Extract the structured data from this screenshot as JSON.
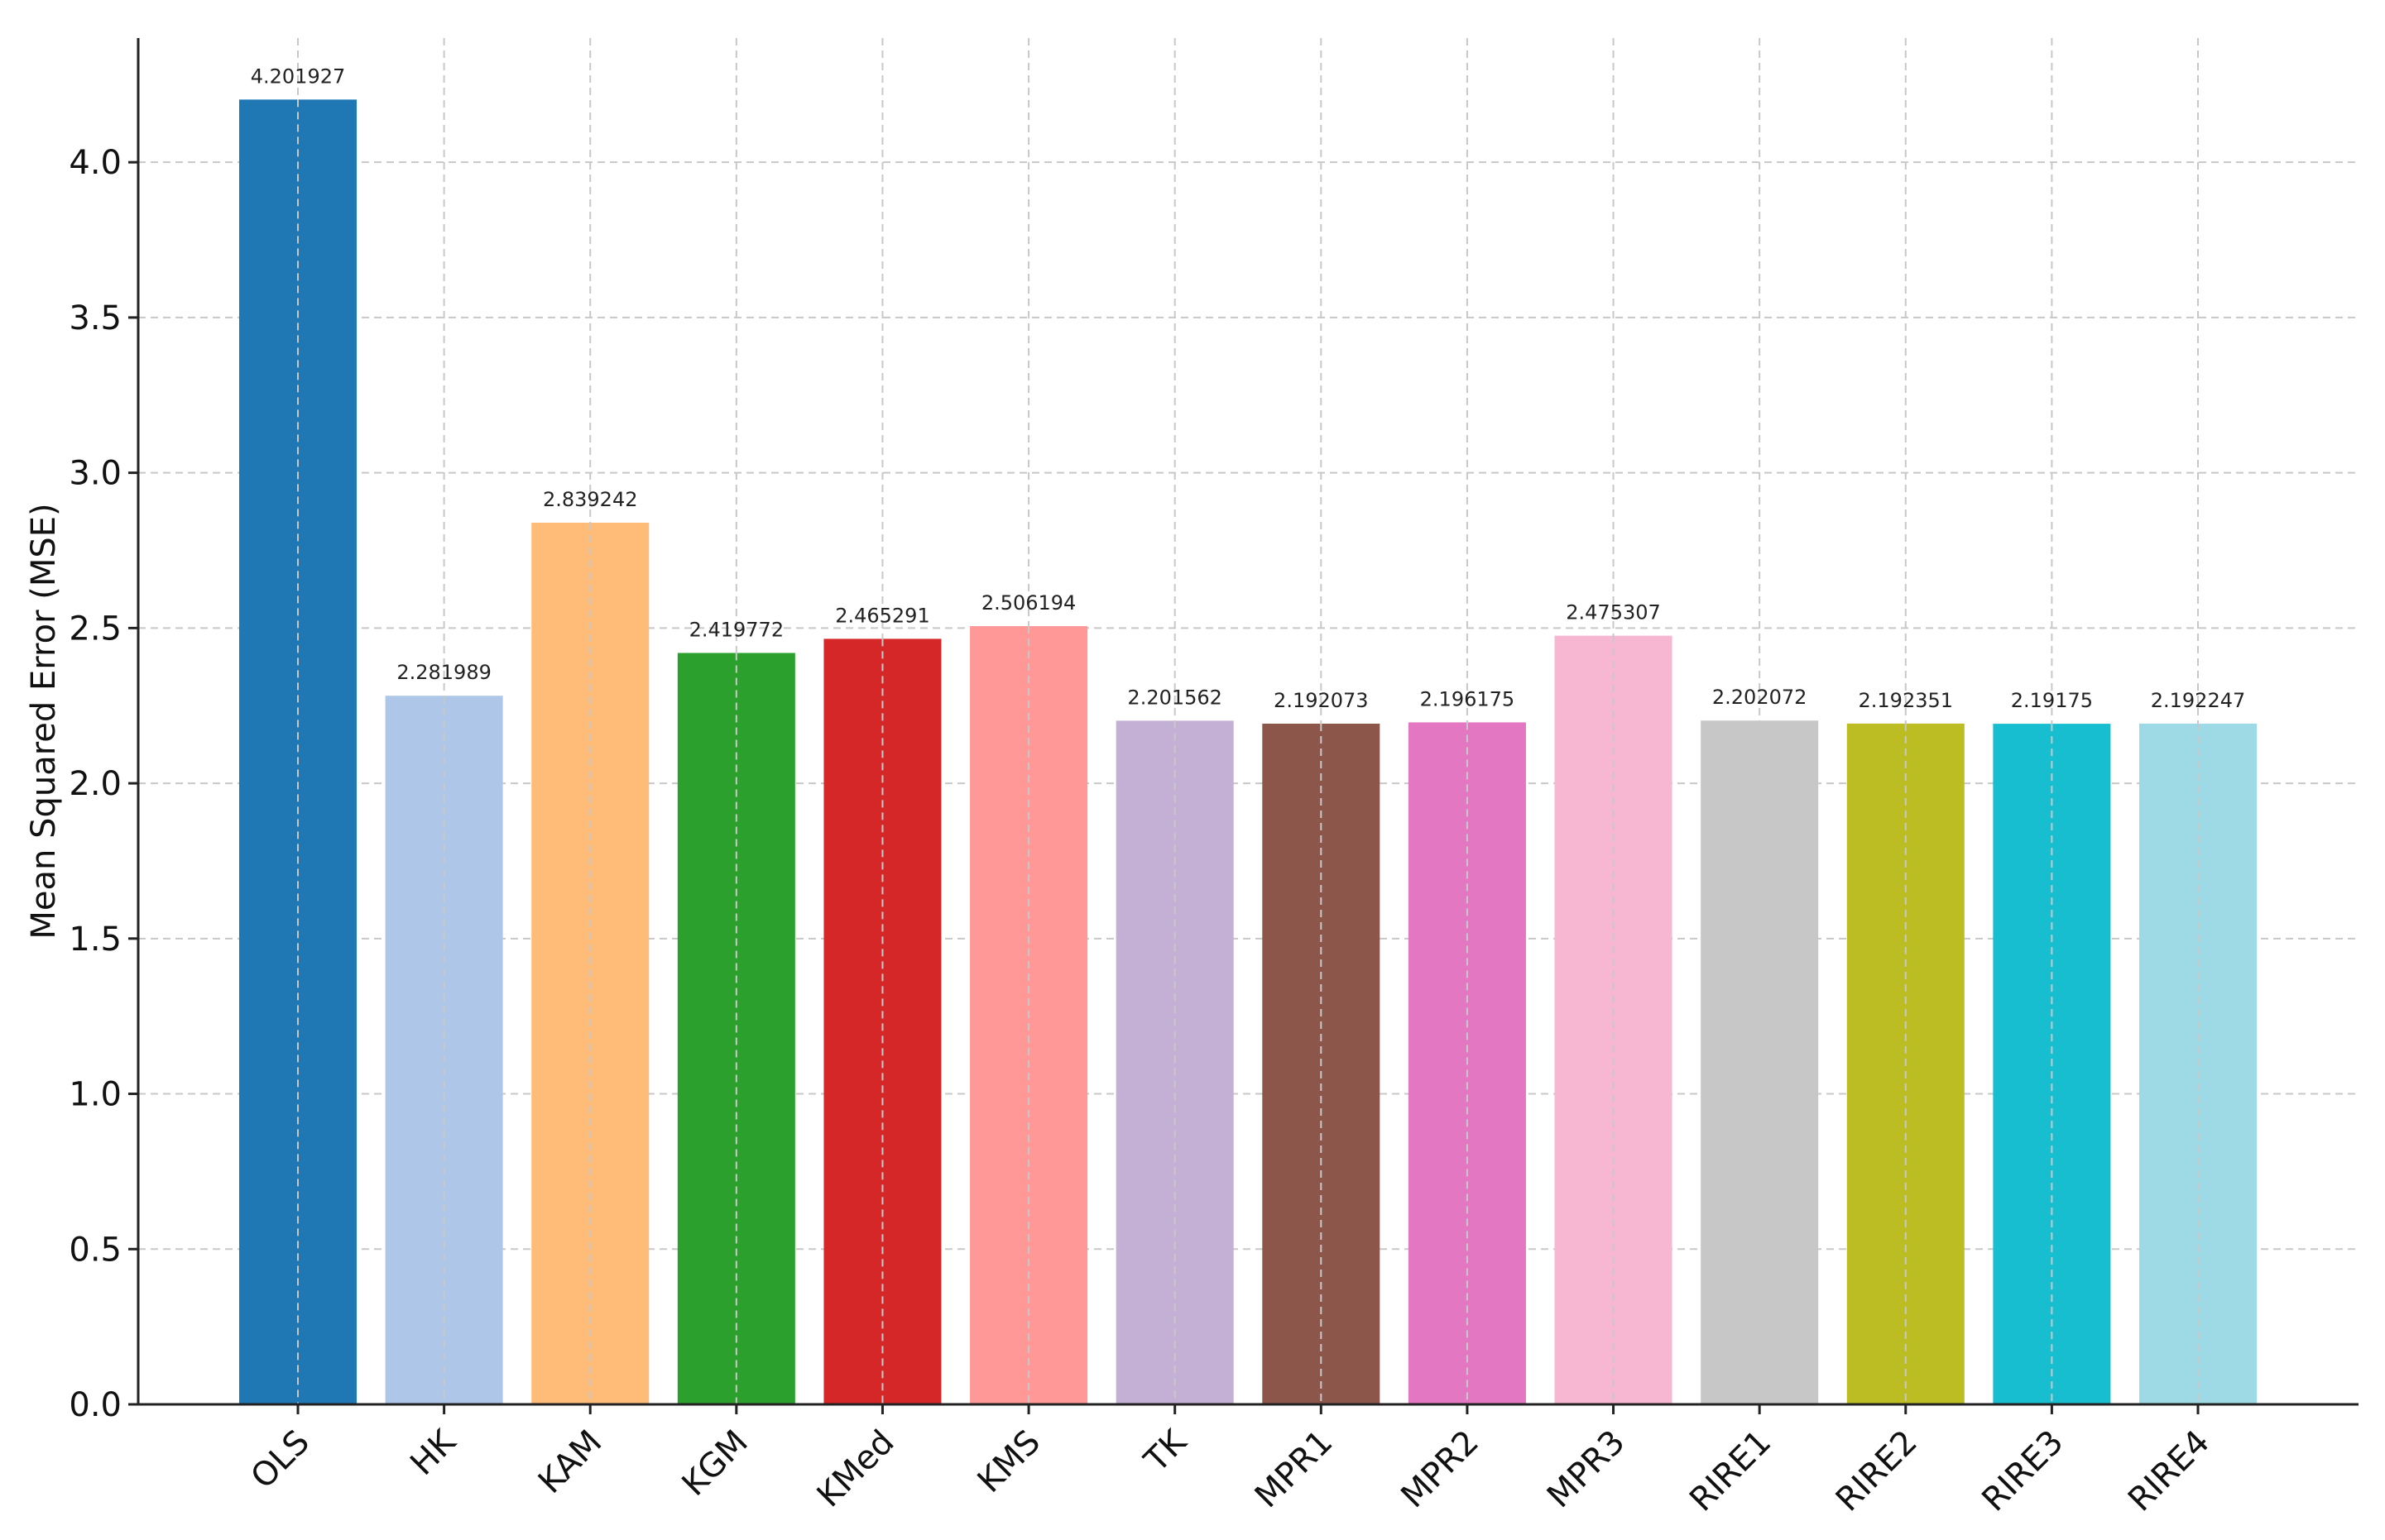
{
  "chart_data": {
    "type": "bar",
    "ylabel": "Mean Squared Error (MSE)",
    "xlabel": "",
    "ylim": [
      0,
      4.4
    ],
    "yticks": [
      "0.0",
      "0.5",
      "1.0",
      "1.5",
      "2.0",
      "2.5",
      "3.0",
      "3.5",
      "4.0"
    ],
    "grid": true,
    "categories": [
      "OLS",
      "HK",
      "KAM",
      "KGM",
      "KMed",
      "KMS",
      "TK",
      "MPR1",
      "MPR2",
      "MPR3",
      "RIRE1",
      "RIRE2",
      "RIRE3",
      "RIRE4"
    ],
    "values": [
      4.201927,
      2.281989,
      2.839242,
      2.419772,
      2.465291,
      2.506194,
      2.201562,
      2.192073,
      2.196175,
      2.475307,
      2.202072,
      2.192351,
      2.19175,
      2.192247
    ],
    "value_labels": [
      "4.201927",
      "2.281989",
      "2.839242",
      "2.419772",
      "2.465291",
      "2.506194",
      "2.201562",
      "2.192073",
      "2.196175",
      "2.475307",
      "2.202072",
      "2.192351",
      "2.19175",
      "2.192247"
    ],
    "colors": [
      "#1f77b4",
      "#aec7e8",
      "#ffbb78",
      "#2ca02c",
      "#d62728",
      "#ff9896",
      "#c5b0d5",
      "#8c564b",
      "#e377c2",
      "#f7b6d2",
      "#c7c7c7",
      "#bcbd22",
      "#17becf",
      "#9edae5"
    ]
  }
}
